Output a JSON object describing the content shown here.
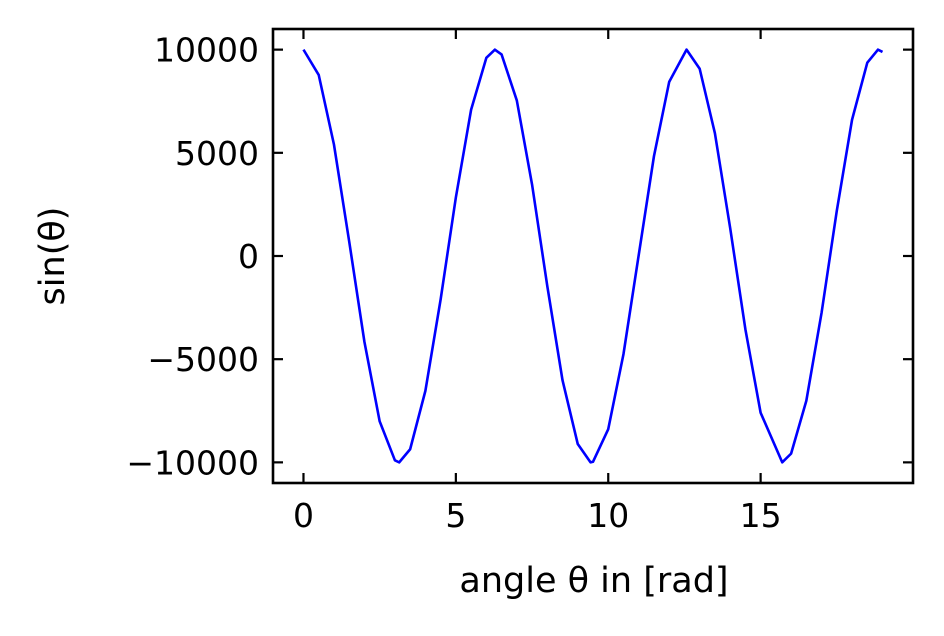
{
  "chart_data": {
    "type": "line",
    "title": "",
    "xlabel": "angle θ in [rad]",
    "ylabel": "sin(θ)",
    "xlim": [
      -1,
      20
    ],
    "ylim": [
      -11000,
      11000
    ],
    "x_ticks": [
      0,
      5,
      10,
      15
    ],
    "x_tick_labels": [
      "0",
      "5",
      "10",
      "15"
    ],
    "y_ticks": [
      10000,
      5000,
      0,
      -5000,
      -10000
    ],
    "y_tick_labels": [
      "10000",
      "5000",
      "0",
      "−5000",
      "−10000"
    ],
    "grid": false,
    "legend": "none",
    "series": [
      {
        "color": "#0000ff",
        "x": [
          0,
          0.5,
          1,
          1.5,
          2,
          2.5,
          3,
          3.14,
          3.5,
          4,
          4.5,
          5,
          5.5,
          6,
          6.28,
          6.5,
          7,
          7.5,
          8,
          8.5,
          9,
          9.42,
          9.5,
          10,
          10.5,
          11,
          11.5,
          12,
          12.57,
          13,
          13.5,
          14,
          14.5,
          15,
          15.71,
          16,
          16.5,
          17,
          17.5,
          18,
          18.5,
          18.85,
          19
        ],
        "y": [
          10000,
          8776,
          5403,
          707,
          -4161,
          -8011,
          -9900,
          -10000,
          -9365,
          -6536,
          -2108,
          2837,
          7087,
          9602,
          10000,
          9766,
          7539,
          3466,
          -1455,
          -6020,
          -9111,
          -10000,
          -9972,
          -8391,
          -4755,
          44,
          4833,
          8439,
          10000,
          9074,
          5949,
          1367,
          -3549,
          -7597,
          -10000,
          -9577,
          -7014,
          -2752,
          2198,
          6603,
          9368,
          10000,
          9887
        ]
      }
    ]
  }
}
